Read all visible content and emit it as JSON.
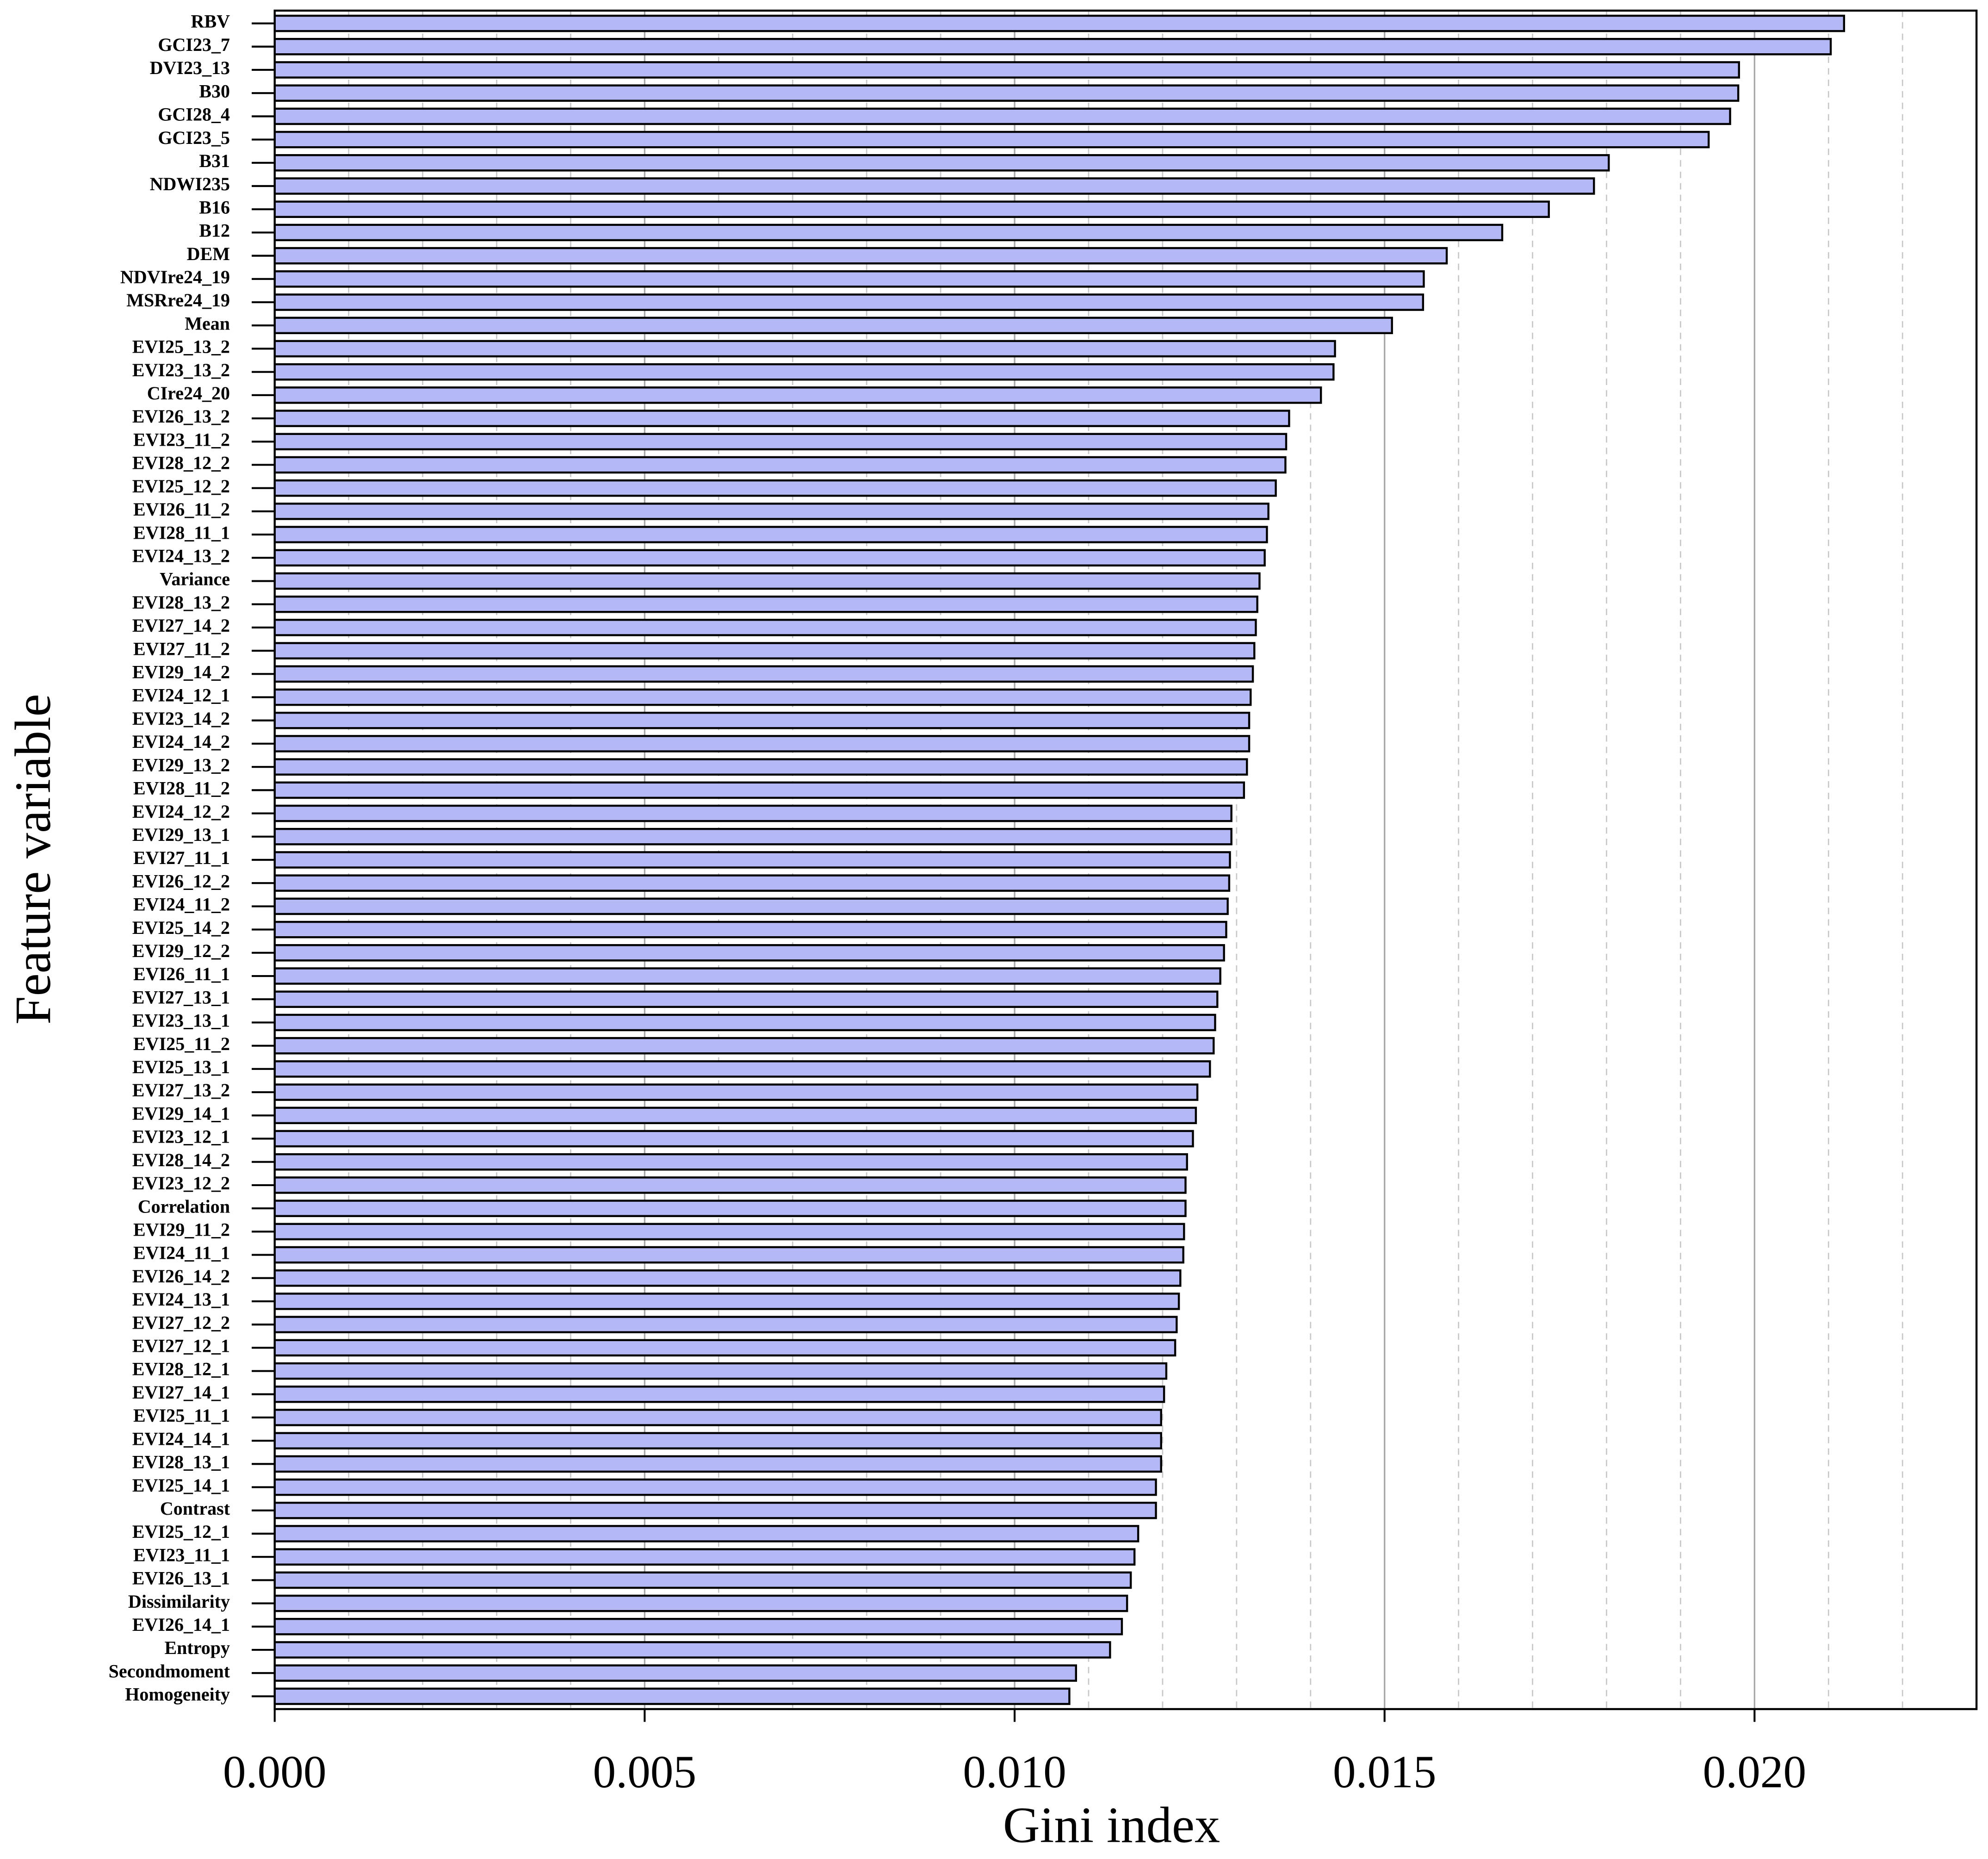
{
  "chart_data": {
    "type": "barh",
    "x_label": "Gini index",
    "y_label": "Feature variable",
    "categories": [
      "RBV",
      "GCI23_7",
      "DVI23_13",
      "B30",
      "GCI28_4",
      "GCI23_5",
      "B31",
      "NDWI235",
      "B16",
      "B12",
      "DEM",
      "NDVIre24_19",
      "MSRre24_19",
      "Mean",
      "EVI25_13_2",
      "EVI23_13_2",
      "CIre24_20",
      "EVI26_13_2",
      "EVI23_11_2",
      "EVI28_12_2",
      "EVI25_12_2",
      "EVI26_11_2",
      "EVI28_11_1",
      "EVI24_13_2",
      "Variance",
      "EVI28_13_2",
      "EVI27_14_2",
      "EVI27_11_2",
      "EVI29_14_2",
      "EVI24_12_1",
      "EVI23_14_2",
      "EVI24_14_2",
      "EVI29_13_2",
      "EVI28_11_2",
      "EVI24_12_2",
      "EVI29_13_1",
      "EVI27_11_1",
      "EVI26_12_2",
      "EVI24_11_2",
      "EVI25_14_2",
      "EVI29_12_2",
      "EVI26_11_1",
      "EVI27_13_1",
      "EVI23_13_1",
      "EVI25_11_2",
      "EVI25_13_1",
      "EVI27_13_2",
      "EVI29_14_1",
      "EVI23_12_1",
      "EVI28_14_2",
      "EVI23_12_2",
      "Correlation",
      "EVI29_11_2",
      "EVI24_11_1",
      "EVI26_14_2",
      "EVI24_13_1",
      "EVI27_12_2",
      "EVI27_12_1",
      "EVI28_12_1",
      "EVI27_14_1",
      "EVI25_11_1",
      "EVI24_14_1",
      "EVI28_13_1",
      "EVI25_14_1",
      "Contrast",
      "EVI25_12_1",
      "EVI23_11_1",
      "EVI26_13_1",
      "Dissimilarity",
      "EVI26_14_1",
      "Entropy",
      "Secondmoment",
      "Homogeneity"
    ],
    "values": [
      0.02121,
      0.02103,
      0.01979,
      0.01978,
      0.01967,
      0.01938,
      0.01803,
      0.01783,
      0.01722,
      0.01659,
      0.01584,
      0.01553,
      0.01552,
      0.0151,
      0.01433,
      0.01431,
      0.01414,
      0.01371,
      0.01367,
      0.01366,
      0.01353,
      0.01343,
      0.01341,
      0.01338,
      0.01331,
      0.01328,
      0.01326,
      0.01324,
      0.01322,
      0.01319,
      0.01317,
      0.01317,
      0.01314,
      0.0131,
      0.01293,
      0.01293,
      0.01291,
      0.0129,
      0.01288,
      0.01286,
      0.01283,
      0.01278,
      0.01274,
      0.01271,
      0.01269,
      0.01264,
      0.01247,
      0.01245,
      0.01241,
      0.01233,
      0.01231,
      0.01231,
      0.01229,
      0.01228,
      0.01224,
      0.01222,
      0.01219,
      0.01217,
      0.01205,
      0.01202,
      0.01198,
      0.01198,
      0.01198,
      0.01191,
      0.01191,
      0.01167,
      0.01162,
      0.01157,
      0.01152,
      0.01145,
      0.01129,
      0.01083,
      0.01074
    ],
    "color": "#b4b8f5",
    "xlim": [
      0,
      0.023
    ],
    "xticks": [
      {
        "value": 0,
        "label": "0.000"
      },
      {
        "value": 0.005,
        "label": "0.005"
      },
      {
        "value": 0.01,
        "label": "0.010"
      },
      {
        "value": 0.015,
        "label": "0.015"
      },
      {
        "value": 0.02,
        "label": "0.020"
      }
    ],
    "minor_grid_xticks": [
      0.001,
      0.002,
      0.003,
      0.004,
      0.006,
      0.007,
      0.008,
      0.009,
      0.011,
      0.012,
      0.013,
      0.014,
      0.016,
      0.017,
      0.018,
      0.019,
      0.021,
      0.022
    ],
    "grid": true
  }
}
